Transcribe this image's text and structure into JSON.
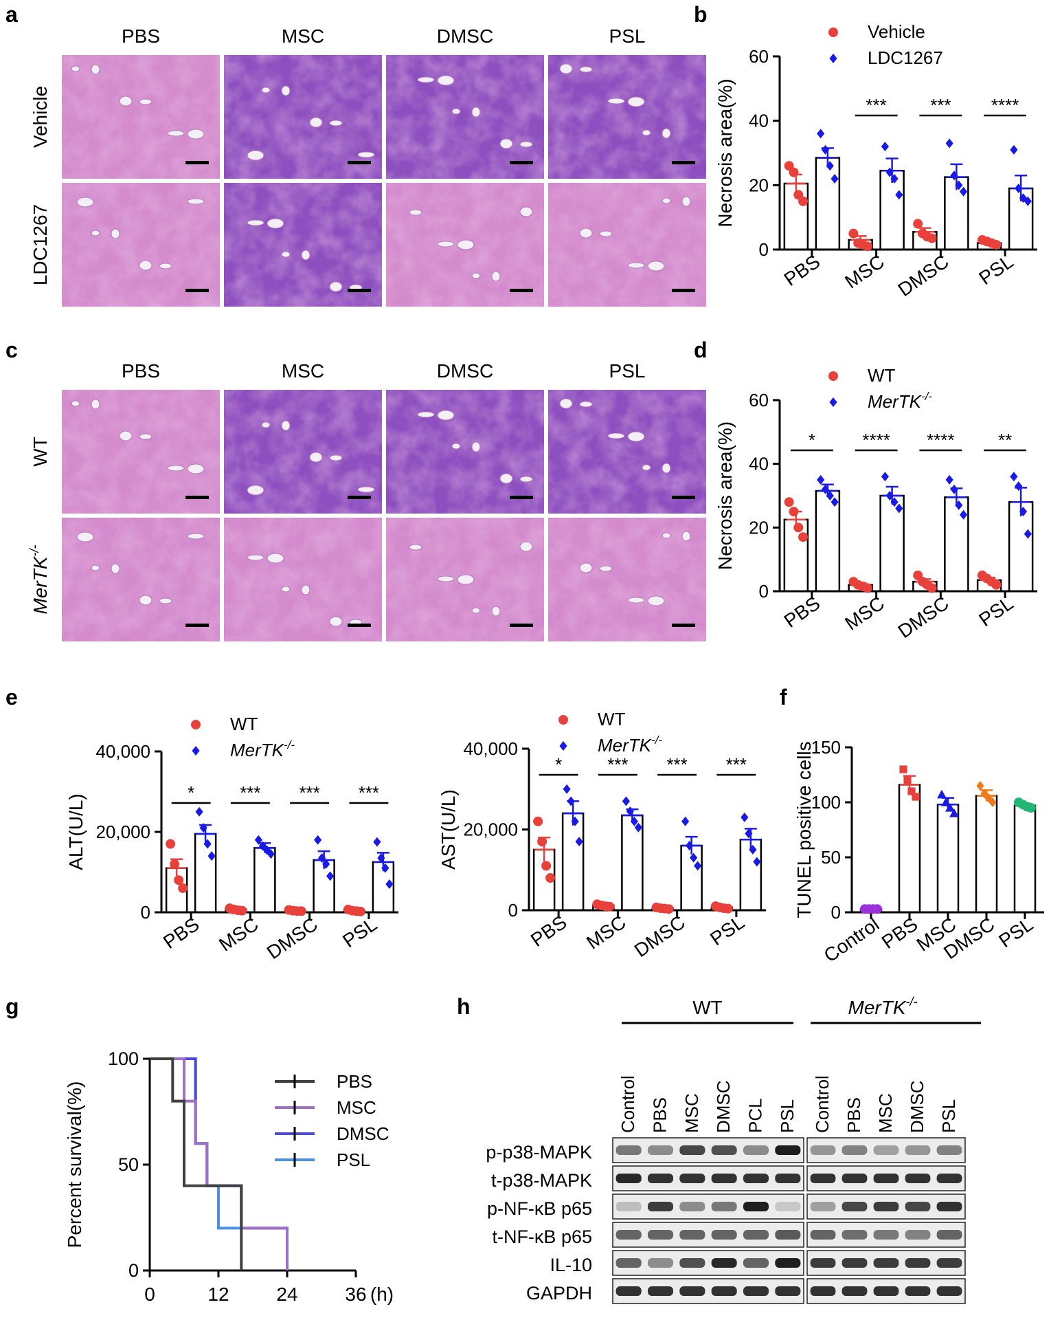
{
  "panel_letters": [
    "a",
    "b",
    "c",
    "d",
    "e",
    "f",
    "g",
    "h"
  ],
  "colors": {
    "red": "#e8413b",
    "blue": "#1a1ae6",
    "purple": "#9b30d9",
    "orange": "#f07a1a",
    "green": "#22b573",
    "tissue_pink": "#d98fcf",
    "tissue_purple": "#8d4fc0",
    "survival": [
      "#404040",
      "#a070c8",
      "#4a4ae0",
      "#4a90e8"
    ]
  },
  "histo_a": {
    "columns": [
      "PBS",
      "MSC",
      "DMSC",
      "PSL"
    ],
    "rows": [
      "Vehicle",
      "LDC1267"
    ]
  },
  "histo_c": {
    "columns": [
      "PBS",
      "MSC",
      "DMSC",
      "PSL"
    ],
    "rows": [
      "WT",
      "MerTK"
    ],
    "row_sup": "-/-"
  },
  "chart_data": [
    {
      "id": "b",
      "type": "bar",
      "ylabel": "Necrosis area(%)",
      "ylim": [
        0,
        60
      ],
      "yticks": [
        "0",
        "20",
        "40",
        "60"
      ],
      "categories": [
        "PBS",
        "MSC",
        "DMSC",
        "PSL"
      ],
      "legend": [
        "Vehicle",
        "LDC1267"
      ],
      "series": [
        {
          "name": "Vehicle",
          "values": [
            20.5,
            3,
            5.5,
            2
          ],
          "sem": [
            2.8,
            1.2,
            1.2,
            0.5
          ],
          "points": [
            [
              26,
              24,
              17,
              15
            ],
            [
              5,
              2,
              1.5,
              1
            ],
            [
              8,
              5,
              4,
              3.5
            ],
            [
              3,
              2.5,
              2,
              1.5
            ]
          ]
        },
        {
          "name": "LDC1267",
          "values": [
            28.5,
            24.5,
            22.5,
            19
          ],
          "sem": [
            3,
            3.8,
            4,
            4
          ],
          "points": [
            [
              36,
              31,
              26,
              22
            ],
            [
              32,
              24,
              22,
              17
            ],
            [
              33,
              23,
              20,
              18
            ],
            [
              31,
              19,
              16,
              15
            ]
          ]
        }
      ],
      "significance": [
        "",
        "***",
        "***",
        "****"
      ]
    },
    {
      "id": "d",
      "type": "bar",
      "ylabel": "Necrosis area(%)",
      "ylim": [
        0,
        60
      ],
      "yticks": [
        "0",
        "20",
        "40",
        "60"
      ],
      "categories": [
        "PBS",
        "MSC",
        "DMSC",
        "PSL"
      ],
      "legend": [
        "WT",
        "MerTK"
      ],
      "legend_sup": "-/-",
      "series": [
        {
          "name": "WT",
          "values": [
            22.5,
            2,
            3,
            3.5
          ],
          "sem": [
            2.5,
            0.6,
            0.8,
            0.8
          ],
          "points": [
            [
              28,
              25,
              20,
              17
            ],
            [
              3,
              2,
              1.5,
              1
            ],
            [
              5,
              3,
              2,
              1
            ],
            [
              5,
              4,
              3,
              2
            ]
          ]
        },
        {
          "name": "MerTK-/-",
          "values": [
            31.5,
            30,
            29.5,
            28
          ],
          "sem": [
            2,
            2.8,
            2.8,
            4.5
          ],
          "points": [
            [
              35,
              32,
              30,
              28
            ],
            [
              36,
              30,
              28,
              26
            ],
            [
              35,
              32,
              27,
              24
            ],
            [
              36,
              33,
              25,
              18
            ]
          ]
        }
      ],
      "significance": [
        "*",
        "****",
        "****",
        "**"
      ]
    },
    {
      "id": "e-alt",
      "type": "bar",
      "ylabel": "ALT(U/L)",
      "ylim": [
        0,
        40000
      ],
      "yticks": [
        "0",
        "20,000",
        "40,000"
      ],
      "categories": [
        "PBS",
        "MSC",
        "DMSC",
        "PSL"
      ],
      "legend": [
        "WT",
        "MerTK"
      ],
      "legend_sup": "-/-",
      "series": [
        {
          "name": "WT",
          "values": [
            11000,
            700,
            400,
            400
          ],
          "sem": [
            2200,
            200,
            100,
            150
          ],
          "points": [
            [
              17000,
              12000,
              8000,
              6000
            ],
            [
              1000,
              700,
              500,
              400
            ],
            [
              600,
              400,
              300,
              300
            ],
            [
              700,
              400,
              300,
              200
            ]
          ]
        },
        {
          "name": "MerTK-/-",
          "values": [
            19500,
            16000,
            13000,
            12500
          ],
          "sem": [
            2200,
            1200,
            2200,
            2300
          ],
          "points": [
            [
              25000,
              21000,
              17000,
              14000
            ],
            [
              18000,
              16500,
              15500,
              14500
            ],
            [
              18000,
              13500,
              12000,
              9000
            ],
            [
              17500,
              13500,
              11000,
              7000
            ]
          ]
        }
      ],
      "significance": [
        "*",
        "***",
        "***",
        "***"
      ]
    },
    {
      "id": "e-ast",
      "type": "bar",
      "ylabel": "AST(U/L)",
      "ylim": [
        0,
        40000
      ],
      "yticks": [
        "0",
        "20,000",
        "40,000"
      ],
      "categories": [
        "PBS",
        "MSC",
        "DMSC",
        "PSL"
      ],
      "legend": [
        "WT",
        "MerTK"
      ],
      "legend_sup": "-/-",
      "series": [
        {
          "name": "WT",
          "values": [
            15000,
            1200,
            500,
            700
          ],
          "sem": [
            3000,
            200,
            100,
            150
          ],
          "points": [
            [
              22000,
              17000,
              11000,
              8000
            ],
            [
              1500,
              1200,
              1000,
              900
            ],
            [
              700,
              500,
              400,
              300
            ],
            [
              1000,
              700,
              500,
              400
            ]
          ]
        },
        {
          "name": "MerTK-/-",
          "values": [
            24000,
            23500,
            16000,
            17500
          ],
          "sem": [
            3000,
            1500,
            2200,
            2700
          ],
          "points": [
            [
              30000,
              27000,
              22000,
              17000
            ],
            [
              27000,
              24500,
              22000,
              20500
            ],
            [
              22000,
              16000,
              13000,
              11000
            ],
            [
              23000,
              19000,
              15000,
              12000
            ]
          ]
        }
      ],
      "significance": [
        "*",
        "***",
        "***",
        "***"
      ]
    },
    {
      "id": "f",
      "type": "bar",
      "ylabel": "TUNEL positive cells",
      "ylim": [
        0,
        150
      ],
      "yticks": [
        "0",
        "50",
        "100",
        "150"
      ],
      "categories": [
        "Control",
        "PBS",
        "MSC",
        "DMSC",
        "PSL"
      ],
      "series": [
        {
          "name": "TUNEL",
          "values": [
            3,
            116,
            98,
            106,
            97
          ],
          "sem": [
            0.5,
            8,
            6,
            5,
            2
          ],
          "points": [
            [
              3,
              3,
              3,
              3
            ],
            [
              130,
              120,
              110,
              105
            ],
            [
              107,
              100,
              95,
              90
            ],
            [
              115,
              108,
              104,
              100
            ],
            [
              100,
              98,
              96,
              95
            ]
          ]
        }
      ]
    },
    {
      "id": "g",
      "type": "line",
      "subtype": "survival",
      "ylabel": "Percent survival(%)",
      "xlabel_unit": "(h)",
      "xlim": [
        0,
        36
      ],
      "ylim": [
        0,
        100
      ],
      "xticks": [
        "0",
        "12",
        "24",
        "36"
      ],
      "yticks": [
        "0",
        "50",
        "100"
      ],
      "legend": [
        "PBS",
        "MSC",
        "DMSC",
        "PSL"
      ],
      "series": [
        {
          "name": "PBS",
          "steps": [
            [
              0,
              100
            ],
            [
              4,
              80
            ],
            [
              6,
              40
            ],
            [
              16,
              0
            ]
          ]
        },
        {
          "name": "MSC",
          "steps": [
            [
              0,
              100
            ],
            [
              6,
              80
            ],
            [
              8,
              60
            ],
            [
              10,
              40
            ],
            [
              16,
              20
            ],
            [
              24,
              0
            ]
          ]
        },
        {
          "name": "DMSC",
          "steps": [
            [
              0,
              100
            ],
            [
              8,
              60
            ],
            [
              10,
              40
            ],
            [
              16,
              20
            ],
            [
              24,
              0
            ]
          ]
        },
        {
          "name": "PSL",
          "steps": [
            [
              0,
              100
            ],
            [
              8,
              60
            ],
            [
              10,
              40
            ],
            [
              12,
              20
            ],
            [
              24,
              0
            ]
          ]
        }
      ]
    }
  ],
  "blot": {
    "group_wt": "WT",
    "group_ko": "MerTK",
    "group_ko_sup": "-/-",
    "lanes_wt": [
      "Control",
      "PBS",
      "MSC",
      "DMSC",
      "PCL",
      "PSL"
    ],
    "lanes_ko": [
      "Control",
      "PBS",
      "MSC",
      "DMSC",
      "PSL"
    ],
    "rows": [
      "p-p38-MAPK",
      "t-p38-MAPK",
      "p-NF-κB p65",
      "t-NF-κB p65",
      "IL-10",
      "GAPDH"
    ],
    "intensity_wt": [
      [
        0.5,
        0.4,
        0.75,
        0.7,
        0.4,
        0.95
      ],
      [
        0.9,
        0.85,
        0.85,
        0.85,
        0.85,
        0.85
      ],
      [
        0.15,
        0.8,
        0.4,
        0.5,
        0.95,
        0.1
      ],
      [
        0.6,
        0.6,
        0.6,
        0.6,
        0.6,
        0.65
      ],
      [
        0.6,
        0.4,
        0.7,
        0.9,
        0.6,
        0.95
      ],
      [
        0.85,
        0.85,
        0.85,
        0.85,
        0.85,
        0.85
      ]
    ],
    "intensity_ko": [
      [
        0.35,
        0.45,
        0.3,
        0.35,
        0.45
      ],
      [
        0.85,
        0.85,
        0.85,
        0.85,
        0.85
      ],
      [
        0.3,
        0.75,
        0.8,
        0.75,
        0.85
      ],
      [
        0.6,
        0.55,
        0.5,
        0.45,
        0.6
      ],
      [
        0.8,
        0.8,
        0.8,
        0.8,
        0.8
      ],
      [
        0.85,
        0.85,
        0.85,
        0.85,
        0.85
      ]
    ]
  }
}
